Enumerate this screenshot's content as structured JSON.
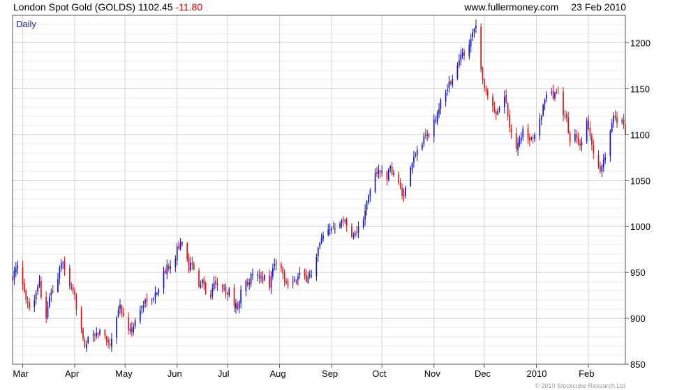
{
  "header": {
    "instrument": "London Spot Gold (GOLDS)",
    "last_price": "1102.45",
    "change": "-11.80",
    "source": "www.fullermoney.com",
    "date": "23 Feb 2010"
  },
  "footer": {
    "copyright": "© 2010 Stockcube Research Ltd"
  },
  "colors": {
    "up": "#1010d0",
    "down": "#dd1111",
    "grid": "#d8d8d8",
    "frame": "#555555"
  },
  "chart_data": {
    "type": "ohlc",
    "period_label": "Daily",
    "y_ticks": [
      850,
      900,
      950,
      1000,
      1050,
      1100,
      1150,
      1200
    ],
    "ylim": [
      850,
      1230
    ],
    "x_ticks": [
      {
        "label": "Mar",
        "day": 0
      },
      {
        "label": "Apr",
        "day": 31
      },
      {
        "label": "May",
        "day": 61
      },
      {
        "label": "Jun",
        "day": 92
      },
      {
        "label": "Jul",
        "day": 122
      },
      {
        "label": "Aug",
        "day": 153
      },
      {
        "label": "Sep",
        "day": 184
      },
      {
        "label": "Oct",
        "day": 214
      },
      {
        "label": "Nov",
        "day": 245
      },
      {
        "label": "Dec",
        "day": 275
      },
      {
        "label": "2010",
        "day": 306
      },
      {
        "label": "Feb",
        "day": 337
      }
    ],
    "xlim_days": [
      -6,
      359
    ],
    "path": [
      [
        -6,
        945
      ],
      [
        -3,
        955
      ],
      [
        0,
        935
      ],
      [
        3,
        918
      ],
      [
        5,
        905
      ],
      [
        8,
        930
      ],
      [
        10,
        940
      ],
      [
        12,
        912
      ],
      [
        14,
        902
      ],
      [
        17,
        930
      ],
      [
        19,
        925
      ],
      [
        21,
        945
      ],
      [
        23,
        962
      ],
      [
        26,
        948
      ],
      [
        29,
        930
      ],
      [
        31,
        922
      ],
      [
        33,
        902
      ],
      [
        35,
        892
      ],
      [
        37,
        870
      ],
      [
        39,
        876
      ],
      [
        41,
        885
      ],
      [
        43,
        880
      ],
      [
        46,
        886
      ],
      [
        49,
        880
      ],
      [
        52,
        872
      ],
      [
        55,
        896
      ],
      [
        58,
        915
      ],
      [
        60,
        900
      ],
      [
        62,
        892
      ],
      [
        64,
        885
      ],
      [
        67,
        896
      ],
      [
        70,
        910
      ],
      [
        74,
        922
      ],
      [
        77,
        918
      ],
      [
        80,
        930
      ],
      [
        83,
        945
      ],
      [
        86,
        955
      ],
      [
        88,
        960
      ],
      [
        90,
        958
      ],
      [
        92,
        978
      ],
      [
        95,
        980
      ],
      [
        97,
        968
      ],
      [
        99,
        955
      ],
      [
        101,
        962
      ],
      [
        103,
        950
      ],
      [
        105,
        932
      ],
      [
        107,
        940
      ],
      [
        109,
        930
      ],
      [
        112,
        922
      ],
      [
        114,
        940
      ],
      [
        117,
        938
      ],
      [
        119,
        932
      ],
      [
        122,
        928
      ],
      [
        124,
        935
      ],
      [
        126,
        915
      ],
      [
        128,
        912
      ],
      [
        130,
        930
      ],
      [
        133,
        938
      ],
      [
        136,
        945
      ],
      [
        139,
        948
      ],
      [
        141,
        942
      ],
      [
        144,
        945
      ],
      [
        147,
        936
      ],
      [
        149,
        955
      ],
      [
        151,
        962
      ],
      [
        153,
        958
      ],
      [
        155,
        948
      ],
      [
        157,
        938
      ],
      [
        160,
        945
      ],
      [
        163,
        940
      ],
      [
        165,
        948
      ],
      [
        168,
        942
      ],
      [
        170,
        946
      ],
      [
        172,
        948
      ],
      [
        174,
        955
      ],
      [
        176,
        975
      ],
      [
        178,
        985
      ],
      [
        180,
        990
      ],
      [
        183,
        995
      ],
      [
        185,
        1000
      ],
      [
        187,
        1002
      ],
      [
        190,
        1010
      ],
      [
        192,
        1005
      ],
      [
        195,
        995
      ],
      [
        197,
        990
      ],
      [
        199,
        995
      ],
      [
        201,
        1000
      ],
      [
        203,
        1008
      ],
      [
        205,
        1025
      ],
      [
        207,
        1040
      ],
      [
        209,
        1055
      ],
      [
        211,
        1060
      ],
      [
        213,
        1058
      ],
      [
        215,
        1062
      ],
      [
        217,
        1055
      ],
      [
        219,
        1062
      ],
      [
        221,
        1058
      ],
      [
        223,
        1050
      ],
      [
        225,
        1040
      ],
      [
        227,
        1030
      ],
      [
        229,
        1048
      ],
      [
        231,
        1060
      ],
      [
        233,
        1075
      ],
      [
        235,
        1082
      ],
      [
        237,
        1090
      ],
      [
        240,
        1098
      ],
      [
        242,
        1102
      ],
      [
        244,
        1108
      ],
      [
        246,
        1118
      ],
      [
        248,
        1130
      ],
      [
        250,
        1140
      ],
      [
        252,
        1148
      ],
      [
        254,
        1155
      ],
      [
        256,
        1160
      ],
      [
        258,
        1170
      ],
      [
        260,
        1180
      ],
      [
        262,
        1190
      ],
      [
        264,
        1185
      ],
      [
        266,
        1200
      ],
      [
        268,
        1215
      ],
      [
        270,
        1218
      ],
      [
        272,
        1190
      ],
      [
        274,
        1160
      ],
      [
        276,
        1145
      ],
      [
        278,
        1135
      ],
      [
        280,
        1130
      ],
      [
        282,
        1125
      ],
      [
        284,
        1130
      ],
      [
        286,
        1148
      ],
      [
        288,
        1135
      ],
      [
        290,
        1110
      ],
      [
        292,
        1100
      ],
      [
        294,
        1085
      ],
      [
        296,
        1095
      ],
      [
        298,
        1105
      ],
      [
        300,
        1098
      ],
      [
        302,
        1090
      ],
      [
        304,
        1100
      ],
      [
        306,
        1105
      ],
      [
        308,
        1118
      ],
      [
        310,
        1130
      ],
      [
        312,
        1140
      ],
      [
        314,
        1150
      ],
      [
        316,
        1138
      ],
      [
        318,
        1148
      ],
      [
        320,
        1140
      ],
      [
        322,
        1125
      ],
      [
        324,
        1115
      ],
      [
        326,
        1095
      ],
      [
        328,
        1102
      ],
      [
        330,
        1095
      ],
      [
        332,
        1085
      ],
      [
        334,
        1098
      ],
      [
        336,
        1112
      ],
      [
        338,
        1100
      ],
      [
        340,
        1080
      ],
      [
        342,
        1065
      ],
      [
        344,
        1062
      ],
      [
        346,
        1070
      ],
      [
        348,
        1088
      ],
      [
        350,
        1108
      ],
      [
        352,
        1118
      ],
      [
        354,
        1115
      ],
      [
        356,
        1122
      ],
      [
        358,
        1110
      ],
      [
        359,
        1102
      ]
    ]
  }
}
